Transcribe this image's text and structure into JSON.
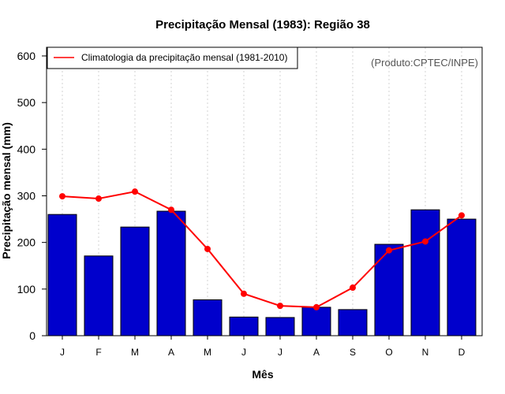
{
  "chart_data": {
    "type": "bar",
    "title": "Precipitação Mensal (1983): Região 38",
    "xlabel": "Mês",
    "ylabel": "Precipitação mensal (mm)",
    "ylim": [
      0,
      620
    ],
    "yticks": [
      0,
      100,
      200,
      300,
      400,
      500,
      600
    ],
    "categories": [
      "J",
      "F",
      "M",
      "A",
      "M",
      "J",
      "J",
      "A",
      "S",
      "O",
      "N",
      "D"
    ],
    "values": [
      260,
      171,
      233,
      267,
      77,
      40,
      39,
      61,
      56,
      196,
      270,
      250
    ],
    "bar_color": "#0000CC",
    "line": {
      "name": "Climatologia da precipitação mensal (1981-2010)",
      "color": "#FF0000",
      "values": [
        299,
        294,
        309,
        270,
        186,
        90,
        64,
        61,
        103,
        183,
        202,
        258
      ]
    },
    "legend_position": "top-left",
    "grid": "vertical dotted",
    "credit": "(Produto:CPTEC/INPE)"
  }
}
